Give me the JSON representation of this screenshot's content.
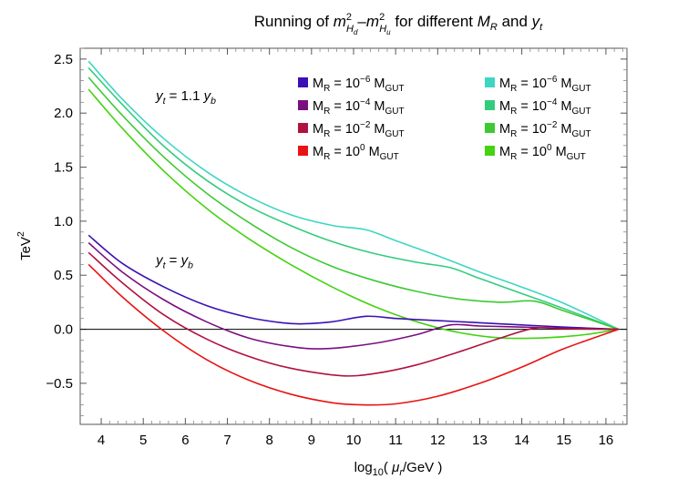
{
  "chart_data": {
    "type": "line",
    "title_parts": {
      "prefix": "Running of ",
      "m1": "m",
      "m1_sup": "2",
      "m1_sub": "H",
      "m1_subsub": "d",
      "dash": "–",
      "m2": "m",
      "m2_sup": "2",
      "m2_sub": "H",
      "m2_subsub": "u",
      "middle": " for different ",
      "MR_M": "M",
      "MR_sub": "R",
      "and": " and ",
      "yt_y": "y",
      "yt_sub": "t"
    },
    "xlabel_parts": {
      "pre": "log",
      "sub": "10",
      "open": "( ",
      "mu": "μ",
      "mu_sub": "r",
      "post": "/GeV )"
    },
    "ylabel_parts": {
      "base": "TeV",
      "sup": "2"
    },
    "xlim": [
      3.5,
      16.5
    ],
    "ylim": [
      -0.88,
      2.6
    ],
    "xticks": [
      4,
      5,
      6,
      7,
      8,
      9,
      10,
      11,
      12,
      13,
      14,
      15,
      16
    ],
    "yticks": [
      -0.5,
      0.0,
      0.5,
      1.0,
      1.5,
      2.0,
      2.5
    ],
    "ytick_labels": [
      "−0.5",
      "0.0",
      "0.5",
      "1.0",
      "1.5",
      "2.0",
      "2.5"
    ],
    "zero_line": true,
    "annotations": [
      {
        "id": "upper",
        "y": "y",
        "y_sub": "t",
        "eq": " = 1.1 ",
        "rhs": "y",
        "rhs_sub": "b",
        "at": [
          5.3,
          2.12
        ]
      },
      {
        "id": "lower",
        "y": "y",
        "y_sub": "t",
        "eq": " = ",
        "rhs": "y",
        "rhs_sub": "b",
        "at": [
          5.3,
          0.6
        ]
      }
    ],
    "legend": {
      "position": "top-right",
      "columns": [
        [
          {
            "text": "M",
            "sub": "R",
            "mid": " = 10",
            "sup": "−6",
            "tail": " M",
            "tail_sub": "GUT",
            "color": "#3b10b4"
          },
          {
            "text": "M",
            "sub": "R",
            "mid": " = 10",
            "sup": "−4",
            "tail": " M",
            "tail_sub": "GUT",
            "color": "#7a0f80"
          },
          {
            "text": "M",
            "sub": "R",
            "mid": " = 10",
            "sup": "−2",
            "tail": " M",
            "tail_sub": "GUT",
            "color": "#b0123f"
          },
          {
            "text": "M",
            "sub": "R",
            "mid": " = 10",
            "sup": "0",
            "tail": "  M",
            "tail_sub": "GUT",
            "color": "#e81313"
          }
        ],
        [
          {
            "text": "M",
            "sub": "R",
            "mid": " = 10",
            "sup": "−6",
            "tail": " M",
            "tail_sub": "GUT",
            "color": "#3fd6c0"
          },
          {
            "text": "M",
            "sub": "R",
            "mid": " = 10",
            "sup": "−4",
            "tail": " M",
            "tail_sub": "GUT",
            "color": "#33cc7f"
          },
          {
            "text": "M",
            "sub": "R",
            "mid": " = 10",
            "sup": "−2",
            "tail": " M",
            "tail_sub": "GUT",
            "color": "#3dc934"
          },
          {
            "text": "M",
            "sub": "R",
            "mid": " = 10",
            "sup": "0",
            "tail": "  M",
            "tail_sub": "GUT",
            "color": "#44d310"
          }
        ]
      ]
    },
    "series": [
      {
        "color": "#3fd6c0",
        "x": [
          3.7,
          4.5,
          5.5,
          6.5,
          7.5,
          8.5,
          9.5,
          10.3,
          11,
          12,
          13,
          14,
          15,
          16.3
        ],
        "y": [
          2.48,
          2.13,
          1.76,
          1.46,
          1.23,
          1.06,
          0.96,
          0.92,
          0.82,
          0.68,
          0.53,
          0.39,
          0.24,
          0.0
        ]
      },
      {
        "color": "#33cc7f",
        "x": [
          3.7,
          4.5,
          5.5,
          6.5,
          7.5,
          8.5,
          9.5,
          10.5,
          11.5,
          12.3,
          13,
          14,
          15,
          16.3
        ],
        "y": [
          2.42,
          2.08,
          1.69,
          1.38,
          1.14,
          0.96,
          0.81,
          0.7,
          0.62,
          0.57,
          0.47,
          0.33,
          0.19,
          0.0
        ]
      },
      {
        "color": "#3dc934",
        "x": [
          3.7,
          4.5,
          5.5,
          6.5,
          7.5,
          8.5,
          9.5,
          10.5,
          11.5,
          12.5,
          13.5,
          14.3,
          15,
          16.3
        ],
        "y": [
          2.33,
          1.98,
          1.59,
          1.26,
          0.99,
          0.76,
          0.58,
          0.45,
          0.35,
          0.28,
          0.25,
          0.26,
          0.17,
          0.0
        ]
      },
      {
        "color": "#44d310",
        "x": [
          3.7,
          4.5,
          5.5,
          6.5,
          7.5,
          8.5,
          9.5,
          10.5,
          11.5,
          12.5,
          13.5,
          14.5,
          15.5,
          16.3
        ],
        "y": [
          2.22,
          1.86,
          1.46,
          1.12,
          0.84,
          0.6,
          0.39,
          0.21,
          0.07,
          -0.03,
          -0.08,
          -0.08,
          -0.05,
          0.0
        ]
      },
      {
        "color": "#3b10b4",
        "x": [
          3.7,
          4.5,
          5.5,
          6.5,
          7.5,
          8.3,
          8.8,
          9.5,
          10.3,
          11,
          12,
          13,
          14,
          15,
          16.3
        ],
        "y": [
          0.87,
          0.61,
          0.39,
          0.22,
          0.11,
          0.06,
          0.05,
          0.07,
          0.12,
          0.1,
          0.08,
          0.06,
          0.04,
          0.02,
          0.0
        ]
      },
      {
        "color": "#7a0f80",
        "x": [
          3.7,
          4.5,
          5.5,
          6.5,
          7.5,
          8.5,
          9.3,
          10.5,
          11.5,
          12.3,
          13,
          14,
          15,
          16.3
        ],
        "y": [
          0.8,
          0.53,
          0.27,
          0.07,
          -0.08,
          -0.16,
          -0.18,
          -0.13,
          -0.05,
          0.04,
          0.03,
          0.02,
          0.01,
          0.0
        ]
      },
      {
        "color": "#b0123f",
        "x": [
          3.7,
          4.5,
          5.5,
          6.5,
          7.5,
          8.5,
          9.7,
          10.5,
          11.5,
          12.5,
          13.5,
          14.3,
          15,
          16.3
        ],
        "y": [
          0.71,
          0.43,
          0.13,
          -0.09,
          -0.25,
          -0.36,
          -0.43,
          -0.41,
          -0.33,
          -0.21,
          -0.08,
          0.01,
          0.005,
          0.0
        ]
      },
      {
        "color": "#e81313",
        "x": [
          3.7,
          4.5,
          5.5,
          6.5,
          7.5,
          8.5,
          9.5,
          10.2,
          11,
          12,
          13,
          14,
          15,
          16.3
        ],
        "y": [
          0.6,
          0.3,
          -0.02,
          -0.28,
          -0.47,
          -0.6,
          -0.68,
          -0.7,
          -0.69,
          -0.62,
          -0.5,
          -0.35,
          -0.18,
          0.0
        ]
      }
    ]
  }
}
